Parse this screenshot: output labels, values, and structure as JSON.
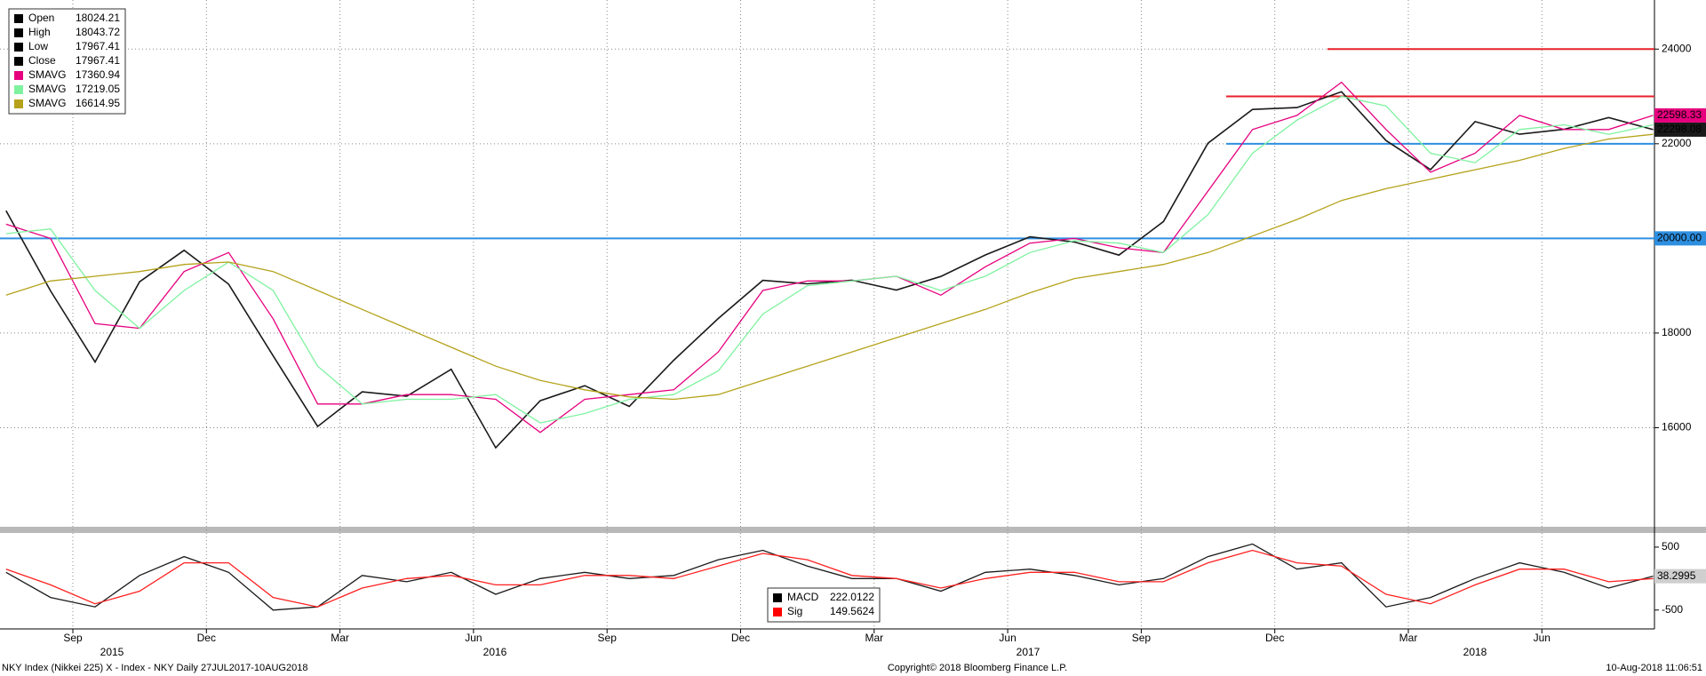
{
  "chart_data": [
    {
      "type": "line",
      "categories": [
        null,
        null,
        "Sep",
        null,
        null,
        "Dec",
        null,
        null,
        "Mar",
        null,
        null,
        "Jun",
        null,
        null,
        "Sep",
        null,
        null,
        "Dec",
        null,
        null,
        "Mar",
        null,
        null,
        "Jun",
        null,
        null,
        "Sep",
        null,
        null,
        "Dec",
        null,
        null,
        "Mar",
        null,
        null,
        "Jun",
        null,
        null
      ],
      "years": [
        "2015",
        "2016",
        "2017",
        "2018"
      ],
      "ylim": [
        14000,
        25000
      ],
      "yticks": [
        16000,
        18000,
        20000,
        22000,
        24000
      ],
      "grid": true,
      "legend": [
        {
          "name": "Open",
          "value": 18024.21,
          "color": "#000000"
        },
        {
          "name": "High",
          "value": 18043.72,
          "color": "#000000"
        },
        {
          "name": "Low",
          "value": 17967.41,
          "color": "#000000"
        },
        {
          "name": "Close",
          "value": 17967.41,
          "color": "#000000"
        },
        {
          "name": "SMAVG",
          "value": 17360.94,
          "color": "#e6007e"
        },
        {
          "name": "SMAVG",
          "value": 17219.05,
          "color": "#7ff2a0"
        },
        {
          "name": "SMAVG",
          "value": 16614.95,
          "color": "#b5a21a"
        }
      ],
      "series": [
        {
          "color": "#1a1a1a",
          "end_label": "22298.08",
          "values": [
            20585,
            18890,
            17388,
            19083,
            19747,
            19033,
            17518,
            16026,
            16758,
            16666,
            17234,
            15575,
            16569,
            16887,
            16449,
            17425,
            18308,
            19114,
            19041,
            19118,
            18909,
            19196,
            19650,
            20033,
            19925,
            19646,
            20356,
            22011,
            22725,
            22764,
            23098,
            22068,
            21454,
            22467,
            22202,
            22305,
            22554,
            22298.08
          ]
        },
        {
          "color": "#e6007e",
          "end_label": "22598.33",
          "values": [
            20300,
            20000,
            18200,
            18100,
            19300,
            19700,
            18300,
            16500,
            16500,
            16700,
            16700,
            16600,
            15900,
            16600,
            16700,
            16800,
            17600,
            18900,
            19100,
            19100,
            19200,
            18800,
            19400,
            19900,
            20000,
            19800,
            19700,
            21000,
            22300,
            22600,
            23300,
            22300,
            21400,
            21800,
            22600,
            22300,
            22300,
            22598.33
          ]
        },
        {
          "color": "#7ff2a0",
          "values": [
            20100,
            20200,
            18900,
            18100,
            18900,
            19500,
            18900,
            17300,
            16500,
            16600,
            16600,
            16700,
            16100,
            16300,
            16600,
            16700,
            17200,
            18400,
            19000,
            19100,
            19200,
            18900,
            19200,
            19700,
            19950,
            19900,
            19700,
            20500,
            21800,
            22500,
            23000,
            22800,
            21800,
            21600,
            22300,
            22400,
            22200,
            22400
          ]
        },
        {
          "color": "#b5a21a",
          "values": [
            18800,
            19100,
            19200,
            19300,
            19450,
            19500,
            19300,
            18900,
            18500,
            18100,
            17700,
            17300,
            17000,
            16800,
            16650,
            16600,
            16700,
            17000,
            17300,
            17600,
            17900,
            18200,
            18500,
            18850,
            19150,
            19300,
            19450,
            19700,
            20050,
            20400,
            20800,
            21050,
            21250,
            21450,
            21650,
            21900,
            22100,
            22200
          ]
        }
      ],
      "hlines": [
        {
          "value": 24000,
          "color": "#e8202a"
        },
        {
          "value": 23000,
          "color": "#e8202a"
        },
        {
          "value": 22000,
          "color": "#2e8fe0"
        },
        {
          "value": 20000,
          "color": "#2e8fe0",
          "label": "20000.00"
        }
      ]
    },
    {
      "type": "line",
      "ylim": [
        -800,
        725
      ],
      "yticks": [
        -500,
        500
      ],
      "legend": [
        {
          "name": "MACD",
          "value": 222.0122,
          "color": "#000000"
        },
        {
          "name": "Sig",
          "value": 149.5624,
          "color": "#ff0000"
        }
      ],
      "series": [
        {
          "color": "#1a1a1a",
          "end_label": "38.2995",
          "values": [
            100,
            -300,
            -450,
            50,
            350,
            100,
            -500,
            -450,
            50,
            -50,
            100,
            -250,
            0,
            100,
            0,
            50,
            300,
            450,
            200,
            0,
            0,
            -200,
            100,
            150,
            50,
            -100,
            0,
            350,
            550,
            150,
            250,
            -450,
            -300,
            0,
            250,
            100,
            -150,
            38.2995
          ]
        },
        {
          "color": "#ff2020",
          "values": [
            150,
            -100,
            -400,
            -200,
            250,
            250,
            -300,
            -450,
            -150,
            0,
            50,
            -100,
            -100,
            50,
            50,
            0,
            200,
            400,
            300,
            50,
            0,
            -150,
            0,
            100,
            100,
            -50,
            -50,
            250,
            450,
            250,
            200,
            -250,
            -400,
            -100,
            150,
            150,
            -50,
            0
          ]
        }
      ]
    }
  ],
  "footer": {
    "left": "NKY Index (Nikkei 225) X - Index - NKY  Daily 27JUL2017-10AUG2018",
    "center": "Copyright© 2018 Bloomberg Finance L.P.",
    "right": "10-Aug-2018 11:06:51"
  }
}
